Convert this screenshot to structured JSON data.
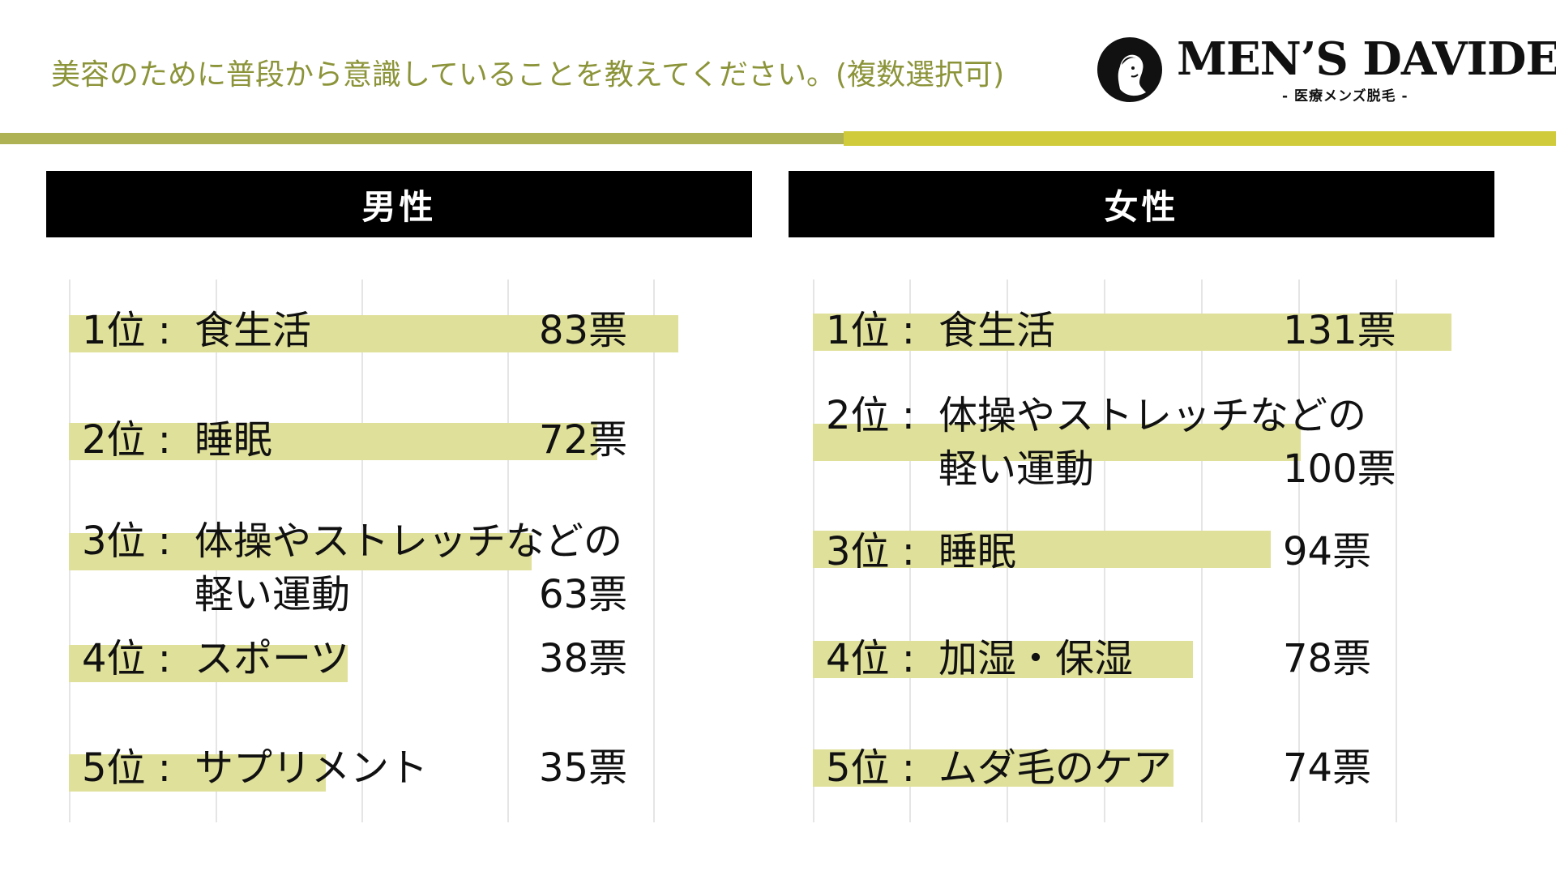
{
  "title": "美容のために普段から意識していることを教えてください。(複数選択可)",
  "logo": {
    "brand": "MEN’S DAVIDE",
    "sub": "- 医療メンズ脱毛 -",
    "icon": "statue-bust-icon"
  },
  "colors": {
    "title": "#8c943a",
    "bar": "#dfe09a",
    "rule_left": "#aeb154",
    "rule_right": "#cfcb3a",
    "header_bg": "#000000"
  },
  "chart_data": [
    {
      "type": "bar",
      "title": "男性",
      "orientation": "horizontal",
      "grid": true,
      "categories": [
        "食生活",
        "睡眠",
        "体操やストレッチなどの軽い運動",
        "スポーツ",
        "サプリメント"
      ],
      "ranks": [
        "1位",
        "2位",
        "3位",
        "4位",
        "5位"
      ],
      "values": [
        83,
        72,
        63,
        38,
        35
      ],
      "value_labels": [
        "83票",
        "72票",
        "63票",
        "38票",
        "35票"
      ],
      "item_lines": [
        [
          "食生活"
        ],
        [
          "睡眠"
        ],
        [
          "体操やストレッチなどの",
          "軽い運動"
        ],
        [
          "スポーツ"
        ],
        [
          "サプリメント"
        ]
      ]
    },
    {
      "type": "bar",
      "title": "女性",
      "orientation": "horizontal",
      "grid": true,
      "categories": [
        "食生活",
        "体操やストレッチなどの軽い運動",
        "睡眠",
        "加湿・保湿",
        "ムダ毛のケア"
      ],
      "ranks": [
        "1位",
        "2位",
        "3位",
        "4位",
        "5位"
      ],
      "values": [
        131,
        100,
        94,
        78,
        74
      ],
      "value_labels": [
        "131票",
        "100票",
        "94票",
        "78票",
        "74票"
      ],
      "item_lines": [
        [
          "食生活"
        ],
        [
          "体操やストレッチなどの",
          "軽い運動"
        ],
        [
          "睡眠"
        ],
        [
          "加湿・保湿"
        ],
        [
          "ムダ毛のケア"
        ]
      ]
    }
  ]
}
